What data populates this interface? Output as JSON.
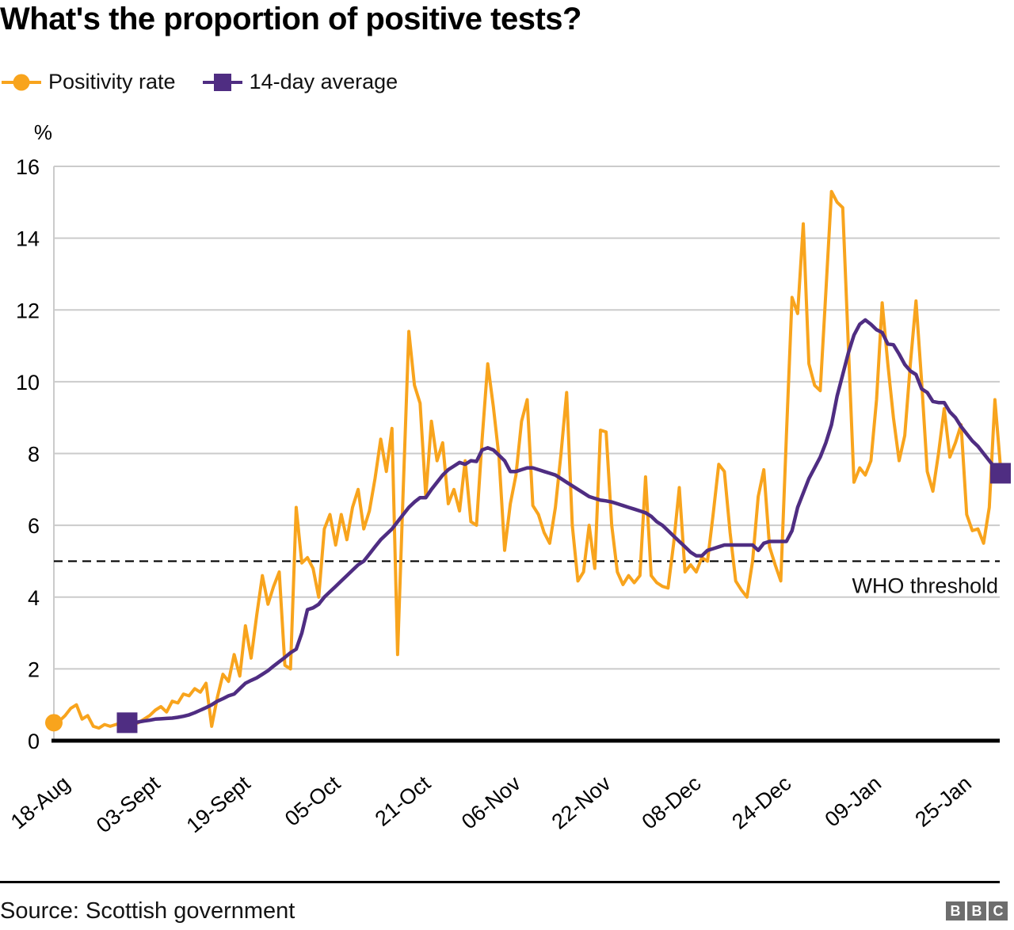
{
  "title": "What's the proportion of positive tests?",
  "legend": [
    {
      "label": "Positivity rate",
      "color": "#f8a41d",
      "marker": "circle"
    },
    {
      "label": "14-day average",
      "color": "#4f2d82",
      "marker": "square"
    }
  ],
  "footer": {
    "source": "Source: Scottish government",
    "logo_letters": [
      "B",
      "B",
      "C"
    ]
  },
  "chart_data": {
    "type": "line",
    "title": "What's the proportion of positive tests?",
    "unit_label": "%",
    "grid": true,
    "grid_color": "#cbcbcb",
    "ylim": [
      0,
      16
    ],
    "y_ticks": [
      0,
      2,
      4,
      6,
      8,
      10,
      12,
      14,
      16
    ],
    "x_axis": {
      "tick_interval_days": 16,
      "labels": [
        "18-Aug",
        "03-Sept",
        "19-Sept",
        "05-Oct",
        "21-Oct",
        "06-Nov",
        "22-Nov",
        "08-Dec",
        "24-Dec",
        "09-Jan",
        "25-Jan"
      ]
    },
    "who_threshold": {
      "label": "WHO threshold",
      "value": 5
    },
    "series": [
      {
        "name": "Positivity rate",
        "color": "#f8a41d",
        "marker": "circle",
        "marker_start": true,
        "marker_end": false,
        "start_day": 0,
        "values": [
          0.5,
          0.55,
          0.7,
          0.9,
          1.0,
          0.6,
          0.7,
          0.4,
          0.35,
          0.45,
          0.4,
          0.45,
          0.5,
          0.5,
          0.45,
          0.5,
          0.6,
          0.7,
          0.85,
          0.95,
          0.8,
          1.1,
          1.05,
          1.3,
          1.25,
          1.45,
          1.35,
          1.6,
          0.4,
          1.2,
          1.85,
          1.65,
          2.4,
          1.8,
          3.2,
          2.3,
          3.5,
          4.6,
          3.8,
          4.3,
          4.7,
          2.1,
          2.0,
          6.5,
          4.95,
          5.1,
          4.8,
          4.0,
          5.9,
          6.3,
          5.45,
          6.3,
          5.6,
          6.5,
          7.0,
          5.9,
          6.4,
          7.3,
          8.4,
          7.5,
          8.7,
          2.4,
          7.0,
          11.4,
          9.9,
          9.4,
          6.8,
          8.9,
          7.8,
          8.3,
          6.6,
          7.0,
          6.4,
          7.8,
          6.1,
          6.0,
          8.4,
          10.5,
          9.3,
          7.9,
          5.3,
          6.6,
          7.4,
          8.9,
          9.5,
          6.55,
          6.3,
          5.8,
          5.5,
          6.5,
          8.0,
          9.7,
          6.0,
          4.45,
          4.7,
          6.0,
          4.8,
          8.65,
          8.6,
          6.0,
          4.7,
          4.35,
          4.6,
          4.4,
          4.6,
          7.35,
          4.6,
          4.4,
          4.3,
          4.25,
          5.5,
          7.05,
          4.7,
          4.9,
          4.7,
          5.1,
          5.0,
          6.3,
          7.7,
          7.5,
          5.8,
          4.45,
          4.2,
          4.0,
          5.0,
          6.8,
          7.55,
          5.4,
          4.9,
          4.45,
          8.5,
          12.35,
          11.9,
          14.4,
          10.5,
          9.9,
          9.75,
          12.5,
          15.3,
          15.0,
          14.85,
          11.0,
          7.2,
          7.6,
          7.4,
          7.8,
          9.5,
          12.2,
          10.5,
          9.0,
          7.8,
          8.5,
          10.5,
          12.25,
          10.0,
          7.5,
          6.95,
          8.0,
          9.25,
          7.9,
          8.3,
          8.8,
          6.3,
          5.85,
          5.9,
          5.5,
          6.5,
          9.5,
          7.6
        ]
      },
      {
        "name": "14-day average",
        "color": "#4f2d82",
        "marker": "square",
        "marker_start": true,
        "marker_end": true,
        "start_day": 13,
        "values": [
          0.5,
          0.5,
          0.52,
          0.55,
          0.57,
          0.6,
          0.61,
          0.62,
          0.63,
          0.65,
          0.68,
          0.72,
          0.78,
          0.85,
          0.92,
          1.0,
          1.1,
          1.17,
          1.25,
          1.3,
          1.45,
          1.6,
          1.68,
          1.75,
          1.85,
          1.95,
          2.08,
          2.2,
          2.32,
          2.45,
          2.55,
          3.0,
          3.65,
          3.7,
          3.8,
          4.0,
          4.15,
          4.3,
          4.45,
          4.6,
          4.75,
          4.9,
          5.0,
          5.2,
          5.4,
          5.6,
          5.75,
          5.9,
          6.1,
          6.3,
          6.5,
          6.65,
          6.77,
          6.77,
          7.0,
          7.2,
          7.4,
          7.55,
          7.65,
          7.75,
          7.7,
          7.8,
          7.78,
          8.1,
          8.16,
          8.1,
          7.95,
          7.8,
          7.5,
          7.5,
          7.55,
          7.6,
          7.6,
          7.55,
          7.5,
          7.45,
          7.4,
          7.3,
          7.2,
          7.1,
          7.0,
          6.9,
          6.8,
          6.75,
          6.7,
          6.68,
          6.65,
          6.6,
          6.55,
          6.5,
          6.45,
          6.4,
          6.35,
          6.25,
          6.1,
          6.0,
          5.85,
          5.7,
          5.55,
          5.4,
          5.25,
          5.15,
          5.15,
          5.3,
          5.35,
          5.4,
          5.45,
          5.45,
          5.45,
          5.45,
          5.45,
          5.45,
          5.3,
          5.5,
          5.55,
          5.55,
          5.55,
          5.55,
          5.85,
          6.5,
          6.9,
          7.3,
          7.6,
          7.9,
          8.3,
          8.8,
          9.6,
          10.2,
          10.8,
          11.3,
          11.6,
          11.72,
          11.6,
          11.45,
          11.37,
          11.05,
          11.03,
          10.77,
          10.48,
          10.3,
          10.2,
          9.8,
          9.7,
          9.45,
          9.42,
          9.42,
          9.16,
          9.0,
          8.75,
          8.55,
          8.35,
          8.2,
          8.0,
          7.8,
          7.6,
          7.45
        ]
      }
    ]
  }
}
